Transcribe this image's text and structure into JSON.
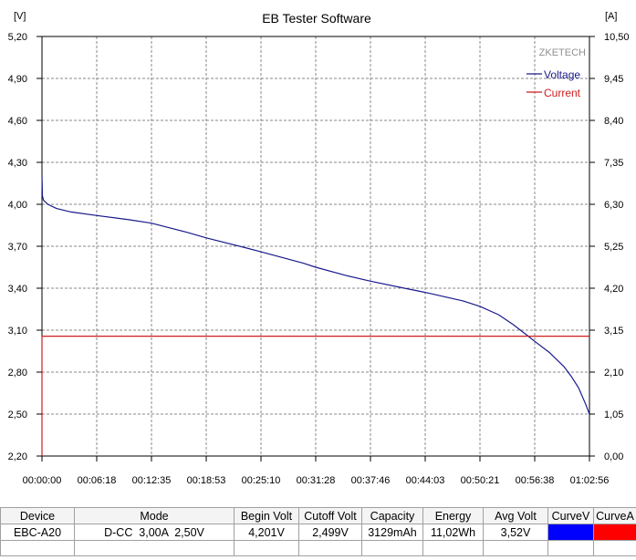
{
  "chart_data": {
    "type": "line",
    "title": "EB Tester Software",
    "watermark": "ZKETECH",
    "y_left_unit": "[V]",
    "y_right_unit": "[A]",
    "y_left_ticks": [
      "5,20",
      "4,90",
      "4,60",
      "4,30",
      "4,00",
      "3,70",
      "3,40",
      "3,10",
      "2,80",
      "2,50",
      "2,20"
    ],
    "y_right_ticks": [
      "10,50",
      "9,45",
      "8,40",
      "7,35",
      "6,30",
      "5,25",
      "4,20",
      "3,15",
      "2,10",
      "1,05",
      "0,00"
    ],
    "x_ticks": [
      "00:00:00",
      "00:06:18",
      "00:12:35",
      "00:18:53",
      "00:25:10",
      "00:31:28",
      "00:37:46",
      "00:44:03",
      "00:50:21",
      "00:56:38",
      "01:02:56"
    ],
    "y_left_range": [
      2.2,
      5.2
    ],
    "y_right_range": [
      0,
      10.5
    ],
    "x_range_seconds": [
      0,
      3776
    ],
    "grid": true,
    "legend_position": "top-right",
    "series": [
      {
        "name": "Voltage",
        "axis": "left",
        "color": "#1a1a8c",
        "x": [
          0,
          3,
          10,
          40,
          100,
          200,
          378,
          600,
          755,
          1000,
          1133,
          1400,
          1510,
          1800,
          1888,
          2100,
          2266,
          2500,
          2644,
          2900,
          3021,
          3150,
          3250,
          3350,
          3399,
          3500,
          3600,
          3650,
          3700,
          3750,
          3776
        ],
        "y": [
          4.201,
          4.06,
          4.03,
          4.0,
          3.97,
          3.945,
          3.92,
          3.89,
          3.865,
          3.8,
          3.76,
          3.69,
          3.66,
          3.58,
          3.55,
          3.49,
          3.45,
          3.4,
          3.37,
          3.31,
          3.27,
          3.21,
          3.14,
          3.06,
          3.02,
          2.94,
          2.84,
          2.77,
          2.69,
          2.57,
          2.499
        ]
      },
      {
        "name": "Current",
        "axis": "right",
        "color": "#cc1f1f",
        "x": [
          0,
          0,
          1,
          3776
        ],
        "y": [
          0,
          3.0,
          3.0,
          3.0
        ]
      }
    ]
  },
  "table": {
    "headers": [
      "Device",
      "Mode",
      "Begin Volt",
      "Cutoff Volt",
      "Capacity",
      "Energy",
      "Avg Volt",
      "CurveV",
      "CurveA"
    ],
    "row": [
      "EBC-A20",
      "D-CC  3,00A  2,50V",
      "4,201V",
      "2,499V",
      "3129mAh",
      "11,02Wh",
      "3,52V"
    ],
    "curve_colors": [
      "#0000ff",
      "#ff0000"
    ]
  }
}
